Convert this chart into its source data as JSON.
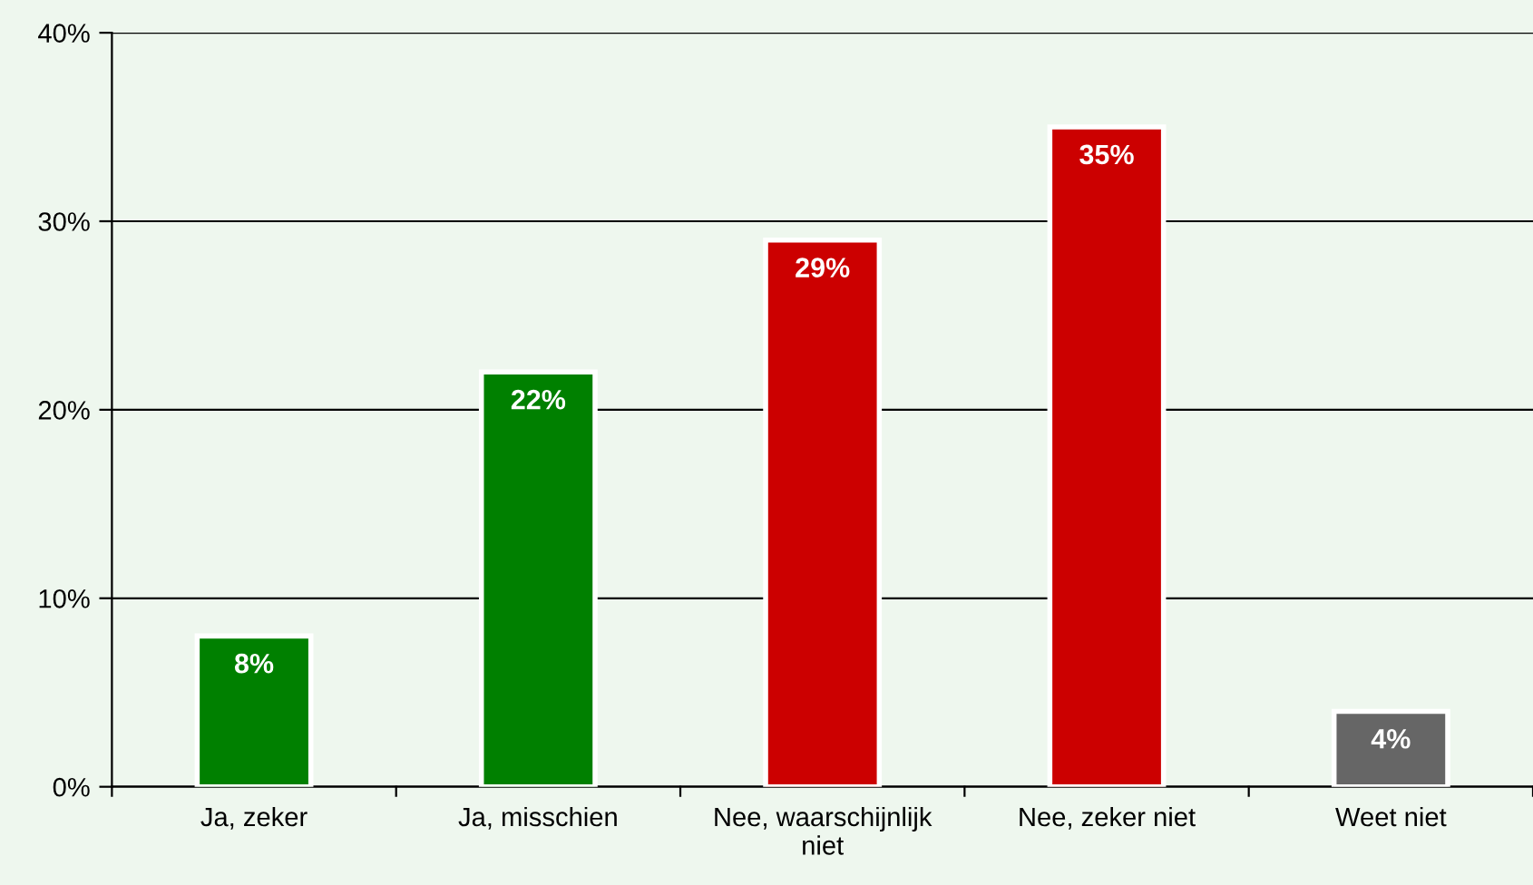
{
  "chart_data": {
    "type": "bar",
    "categories": [
      "Ja, zeker",
      "Ja, misschien",
      "Nee, waarschijnlijk\nniet",
      "Nee, zeker niet",
      "Weet niet"
    ],
    "values": [
      8,
      22,
      29,
      35,
      4
    ],
    "colors": [
      "#008000",
      "#008000",
      "#cc0000",
      "#cc0000",
      "#666666"
    ],
    "value_labels": [
      "8%",
      "22%",
      "29%",
      "35%",
      "4%"
    ],
    "ylim": [
      0,
      40
    ],
    "yticks": [
      {
        "value": 0,
        "label": "0%"
      },
      {
        "value": 10,
        "label": "10%"
      },
      {
        "value": 20,
        "label": "20%"
      },
      {
        "value": 30,
        "label": "30%"
      },
      {
        "value": 40,
        "label": "40%"
      }
    ],
    "grid": "y",
    "legend": false
  }
}
